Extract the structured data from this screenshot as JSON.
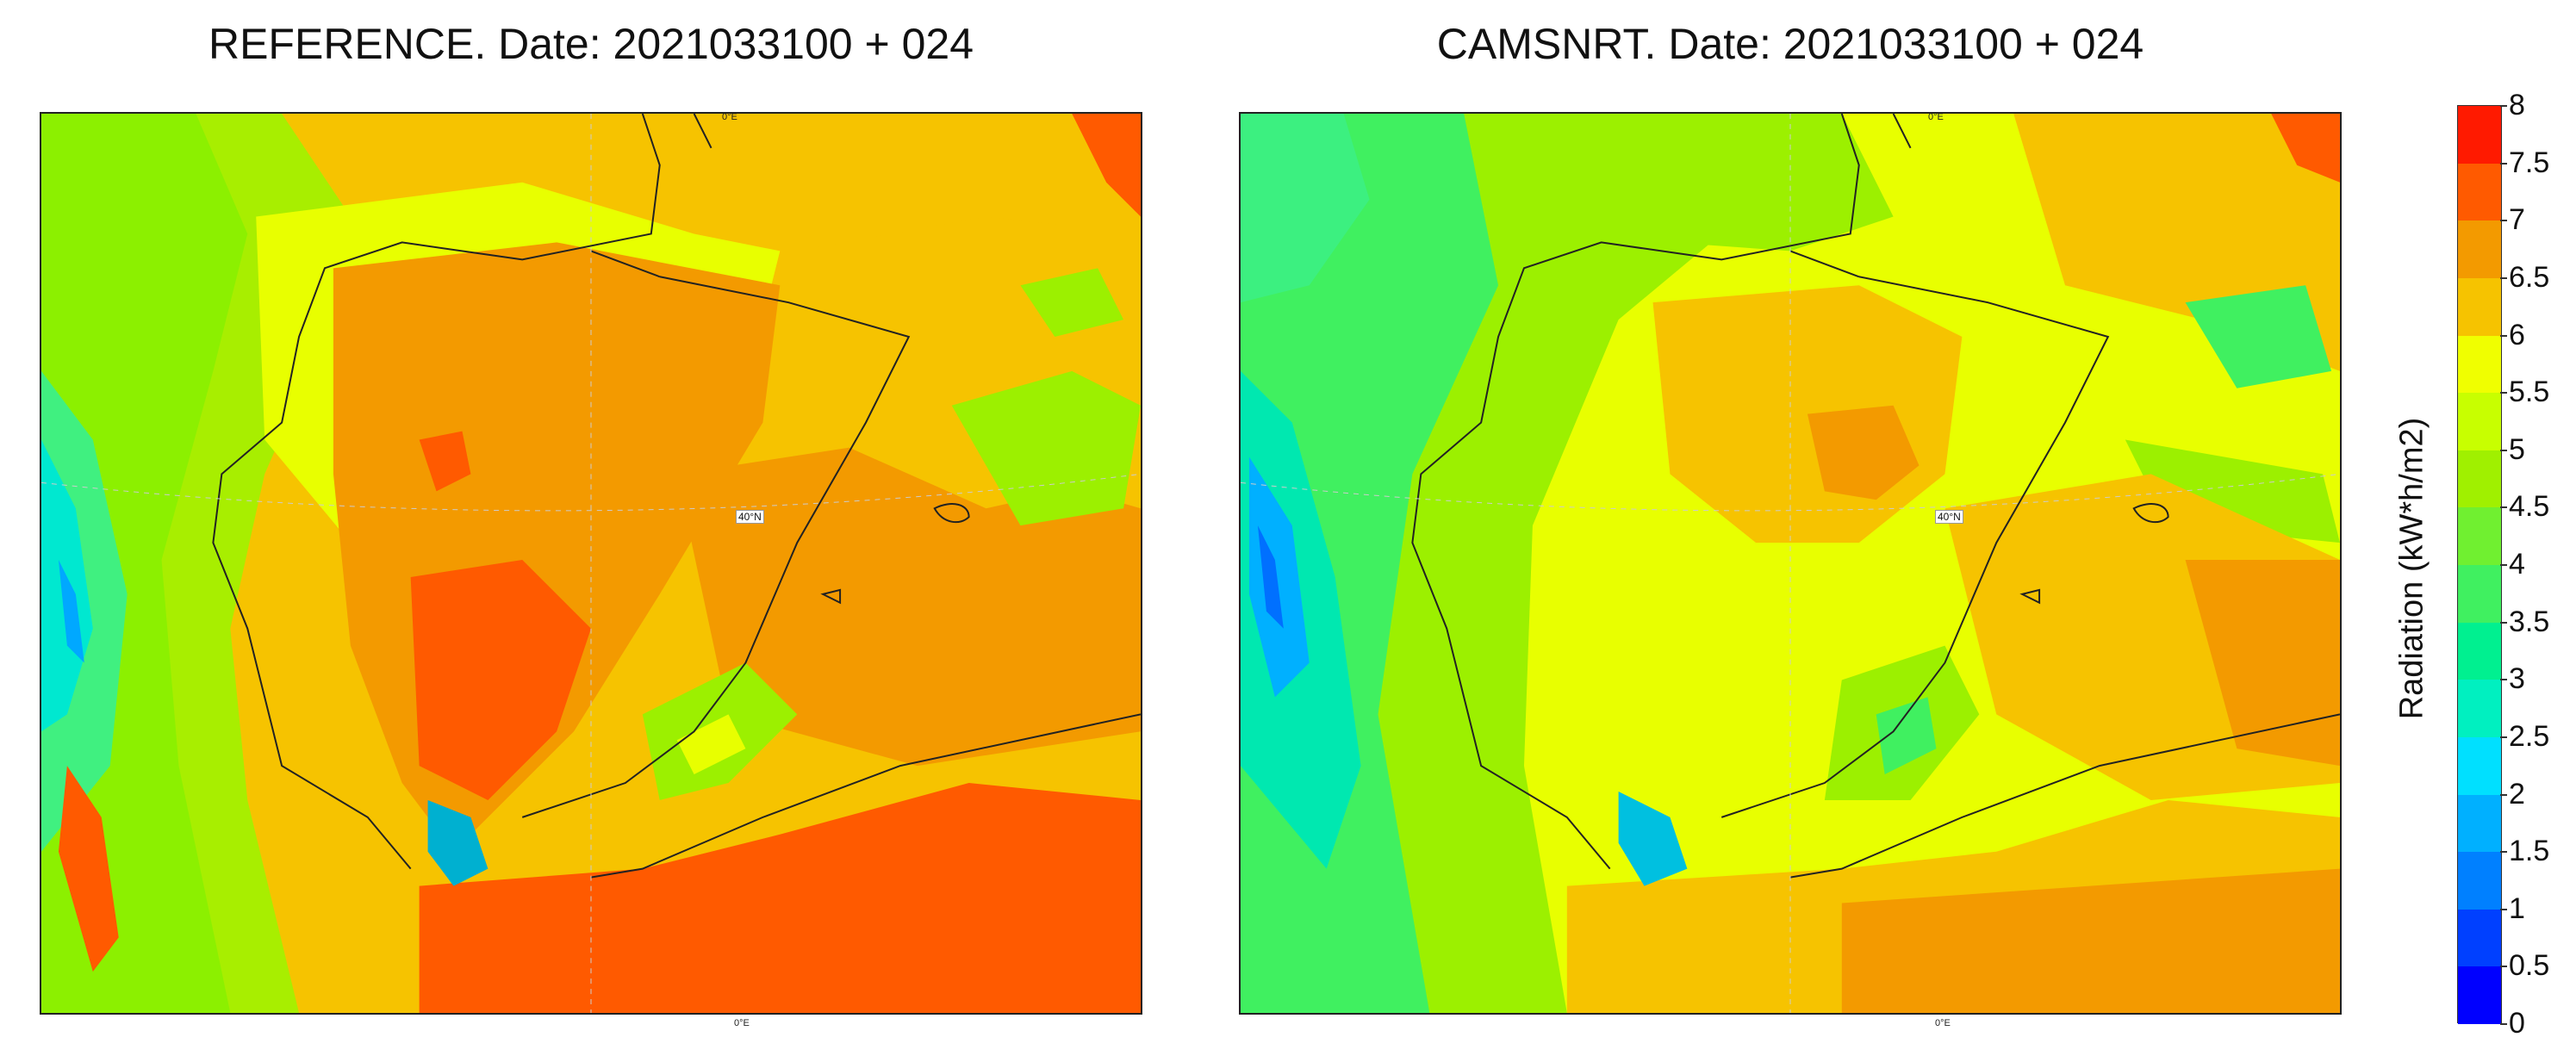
{
  "maps": [
    {
      "title": "REFERENCE. Date: 2021033100 + 024",
      "lon_label_top": "0°E",
      "lon_label_bottom": "0°E",
      "lat_label": "40°N",
      "dominant_colors": [
        "#f39a00",
        "#ff5a00",
        "#f6c300",
        "#e8ff00",
        "#9cf000",
        "#00e8e0"
      ]
    },
    {
      "title": "CAMSNRT. Date: 2021033100 + 024",
      "lon_label_top": "0°E",
      "lon_label_bottom": "0°E",
      "lat_label": "40°N",
      "dominant_colors": [
        "#f6c300",
        "#e8ff00",
        "#9cf000",
        "#3cf060",
        "#00e8e0",
        "#ff5a00"
      ]
    }
  ],
  "colorbar": {
    "label": "Radiation (kW*h/m2)",
    "ticks": [
      "0",
      "0.5",
      "1",
      "1.5",
      "2",
      "2.5",
      "3",
      "3.5",
      "4",
      "4.5",
      "5",
      "5.5",
      "6",
      "6.5",
      "7",
      "7.5",
      "8"
    ],
    "colors": [
      "#0000ff",
      "#0040ff",
      "#0080ff",
      "#00b0ff",
      "#00e0ff",
      "#00f0c0",
      "#00f090",
      "#40f060",
      "#70f030",
      "#a0f000",
      "#c8ff00",
      "#f0ff00",
      "#f6c300",
      "#f39a00",
      "#ff5a00",
      "#ff1a00"
    ]
  }
}
